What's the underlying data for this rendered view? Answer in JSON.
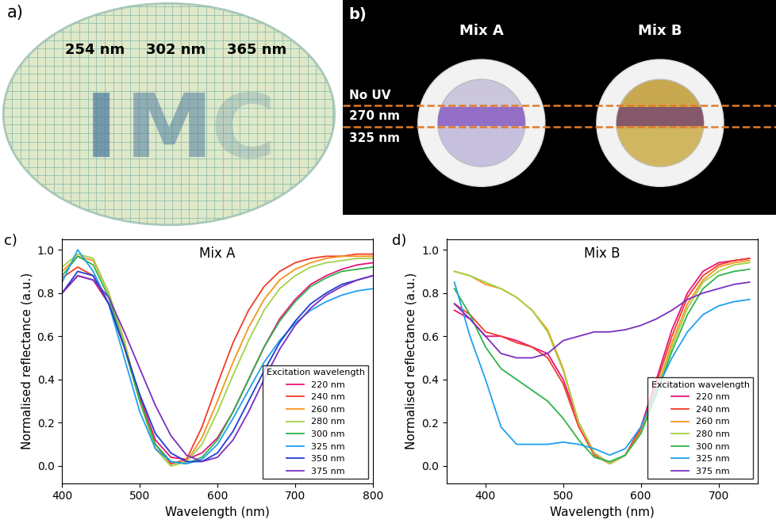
{
  "panel_labels": [
    "a)",
    "b)",
    "c)",
    "d)"
  ],
  "photo_a": {
    "pattern_text": "IMC",
    "exposure_labels": [
      "254 nm",
      "302 nm",
      "365 nm"
    ]
  },
  "photo_b": {
    "samples": [
      "Mix A",
      "Mix B"
    ],
    "rows": [
      "No UV",
      "270 nm",
      "325 nm"
    ]
  },
  "chart_data": [
    {
      "type": "line",
      "title": "Mix A",
      "x_label": "Wavelength (nm)",
      "y_label": "Normalised reflectance (a.u.)",
      "x": [
        400,
        420,
        440,
        460,
        480,
        500,
        520,
        540,
        560,
        580,
        600,
        620,
        640,
        660,
        680,
        700,
        720,
        740,
        760,
        780,
        800
      ],
      "xlim": [
        400,
        800
      ],
      "xticks": [
        400,
        500,
        600,
        700,
        800
      ],
      "ylim": [
        -0.08,
        1.05
      ],
      "yticks": [
        {
          "value": 0.0,
          "label": "0.0"
        },
        {
          "value": 0.2,
          "label": "0.2"
        },
        {
          "value": 0.4,
          "label": "0.4"
        },
        {
          "value": 0.6,
          "label": "0.6"
        },
        {
          "value": 0.8,
          "label": "0.8"
        },
        {
          "value": 1.0,
          "label": "1.0"
        }
      ],
      "legend": "lower right",
      "legend_title": "Excitation wavelength",
      "series": [
        {
          "name": "220 nm",
          "color": "#e8127c",
          "values": [
            0.8,
            0.88,
            0.86,
            0.75,
            0.55,
            0.32,
            0.12,
            0.04,
            0.03,
            0.06,
            0.13,
            0.25,
            0.4,
            0.55,
            0.68,
            0.77,
            0.84,
            0.88,
            0.91,
            0.93,
            0.94
          ]
        },
        {
          "name": "240 nm",
          "color": "#f03c28",
          "values": [
            0.87,
            0.92,
            0.88,
            0.75,
            0.55,
            0.3,
            0.1,
            0.01,
            0.03,
            0.18,
            0.38,
            0.57,
            0.72,
            0.83,
            0.9,
            0.94,
            0.96,
            0.97,
            0.97,
            0.98,
            0.98
          ]
        },
        {
          "name": "260 nm",
          "color": "#f7941d",
          "values": [
            0.9,
            0.97,
            0.95,
            0.8,
            0.58,
            0.3,
            0.08,
            0.0,
            0.02,
            0.13,
            0.3,
            0.48,
            0.64,
            0.77,
            0.86,
            0.91,
            0.94,
            0.96,
            0.97,
            0.97,
            0.97
          ]
        },
        {
          "name": "280 nm",
          "color": "#a3d14a",
          "values": [
            0.92,
            0.98,
            0.96,
            0.8,
            0.57,
            0.3,
            0.08,
            0.0,
            0.02,
            0.1,
            0.25,
            0.42,
            0.58,
            0.72,
            0.82,
            0.88,
            0.92,
            0.94,
            0.95,
            0.96,
            0.96
          ]
        },
        {
          "name": "300 nm",
          "color": "#2fb34a",
          "values": [
            0.88,
            0.97,
            0.93,
            0.78,
            0.55,
            0.3,
            0.1,
            0.02,
            0.01,
            0.04,
            0.12,
            0.25,
            0.4,
            0.55,
            0.67,
            0.76,
            0.83,
            0.87,
            0.9,
            0.91,
            0.92
          ]
        },
        {
          "name": "325 nm",
          "color": "#1fa0f0",
          "values": [
            0.85,
            1.0,
            0.9,
            0.75,
            0.5,
            0.25,
            0.08,
            0.02,
            0.01,
            0.03,
            0.1,
            0.22,
            0.35,
            0.48,
            0.58,
            0.66,
            0.72,
            0.76,
            0.79,
            0.81,
            0.82
          ]
        },
        {
          "name": "350 nm",
          "color": "#1f3fd0",
          "values": [
            0.8,
            0.9,
            0.88,
            0.75,
            0.55,
            0.33,
            0.15,
            0.06,
            0.02,
            0.02,
            0.06,
            0.16,
            0.3,
            0.44,
            0.57,
            0.67,
            0.75,
            0.8,
            0.84,
            0.86,
            0.88
          ]
        },
        {
          "name": "375 nm",
          "color": "#7b2fc0",
          "values": [
            0.8,
            0.88,
            0.86,
            0.78,
            0.62,
            0.45,
            0.28,
            0.14,
            0.05,
            0.02,
            0.04,
            0.12,
            0.25,
            0.4,
            0.54,
            0.65,
            0.73,
            0.79,
            0.83,
            0.86,
            0.88
          ]
        }
      ]
    },
    {
      "type": "line",
      "title": "Mix B",
      "x_label": "Wavelength (nm)",
      "y_label": "Normalised reflectance (a.u.)",
      "x": [
        360,
        380,
        400,
        420,
        440,
        460,
        480,
        500,
        520,
        540,
        560,
        580,
        600,
        620,
        640,
        660,
        680,
        700,
        720,
        740
      ],
      "xlim": [
        350,
        750
      ],
      "xticks": [
        400,
        500,
        600,
        700
      ],
      "ylim": [
        -0.08,
        1.05
      ],
      "yticks": [
        {
          "value": 0.0,
          "label": "0.0"
        },
        {
          "value": 0.2,
          "label": "0.2"
        },
        {
          "value": 0.4,
          "label": "0.4"
        },
        {
          "value": 0.6,
          "label": "0.6"
        },
        {
          "value": 0.8,
          "label": "0.8"
        },
        {
          "value": 1.0,
          "label": "1.0"
        }
      ],
      "legend": "lower right",
      "legend_title": "Excitation wavelength",
      "series": [
        {
          "name": "220 nm",
          "color": "#e8127c",
          "values": [
            0.72,
            0.68,
            0.6,
            0.6,
            0.58,
            0.55,
            0.52,
            0.4,
            0.2,
            0.06,
            0.01,
            0.05,
            0.18,
            0.4,
            0.63,
            0.8,
            0.9,
            0.94,
            0.95,
            0.96
          ]
        },
        {
          "name": "240 nm",
          "color": "#f03c28",
          "values": [
            0.75,
            0.7,
            0.62,
            0.6,
            0.57,
            0.55,
            0.5,
            0.38,
            0.18,
            0.05,
            0.01,
            0.05,
            0.17,
            0.38,
            0.6,
            0.78,
            0.88,
            0.93,
            0.95,
            0.96
          ]
        },
        {
          "name": "260 nm",
          "color": "#f7941d",
          "values": [
            0.9,
            0.88,
            0.84,
            0.82,
            0.78,
            0.72,
            0.63,
            0.45,
            0.2,
            0.06,
            0.01,
            0.05,
            0.16,
            0.35,
            0.57,
            0.75,
            0.86,
            0.92,
            0.94,
            0.95
          ]
        },
        {
          "name": "280 nm",
          "color": "#a3d14a",
          "values": [
            0.9,
            0.88,
            0.85,
            0.82,
            0.78,
            0.72,
            0.62,
            0.44,
            0.2,
            0.06,
            0.01,
            0.05,
            0.15,
            0.34,
            0.55,
            0.73,
            0.85,
            0.9,
            0.93,
            0.94
          ]
        },
        {
          "name": "300 nm",
          "color": "#2fb34a",
          "values": [
            0.82,
            0.7,
            0.55,
            0.45,
            0.4,
            0.35,
            0.3,
            0.22,
            0.12,
            0.04,
            0.02,
            0.05,
            0.15,
            0.33,
            0.53,
            0.7,
            0.82,
            0.88,
            0.9,
            0.91
          ]
        },
        {
          "name": "325 nm",
          "color": "#1fa0f0",
          "values": [
            0.85,
            0.6,
            0.4,
            0.18,
            0.1,
            0.1,
            0.1,
            0.11,
            0.1,
            0.08,
            0.05,
            0.08,
            0.18,
            0.35,
            0.5,
            0.62,
            0.7,
            0.74,
            0.76,
            0.77
          ]
        },
        {
          "name": "375 nm",
          "color": "#7b2fc0",
          "values": [
            0.75,
            0.68,
            0.6,
            0.52,
            0.5,
            0.5,
            0.52,
            0.58,
            0.6,
            0.62,
            0.62,
            0.63,
            0.65,
            0.68,
            0.72,
            0.77,
            0.8,
            0.82,
            0.84,
            0.85
          ]
        }
      ]
    }
  ]
}
